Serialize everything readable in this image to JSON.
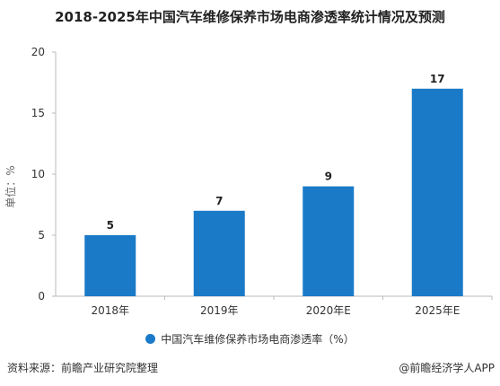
{
  "title": "2018-2025年中国汽车维修保养市场电商渗透率统计情况及预测",
  "footer": {
    "source": "资料来源：前瞻产业研究院整理",
    "brand": "@前瞻经济学人APP"
  },
  "colors": {
    "bar": "#1a7ac8",
    "axis": "#bbbbbb",
    "text": "#333333"
  },
  "chart_data": {
    "type": "bar",
    "categories": [
      "2018年",
      "2019年",
      "2020年E",
      "2025年E"
    ],
    "series": [
      {
        "name": "中国汽车维修保养市场电商渗透率（%）",
        "values": [
          5,
          7,
          9,
          17
        ]
      }
    ],
    "data_labels": [
      "5",
      "7",
      "9",
      "17"
    ],
    "ylabel": "单位：%",
    "xlabel": "",
    "ylim": [
      0,
      20
    ],
    "yticks": [
      0,
      5,
      10,
      15,
      20
    ],
    "grid": false,
    "legend_position": "bottom"
  }
}
